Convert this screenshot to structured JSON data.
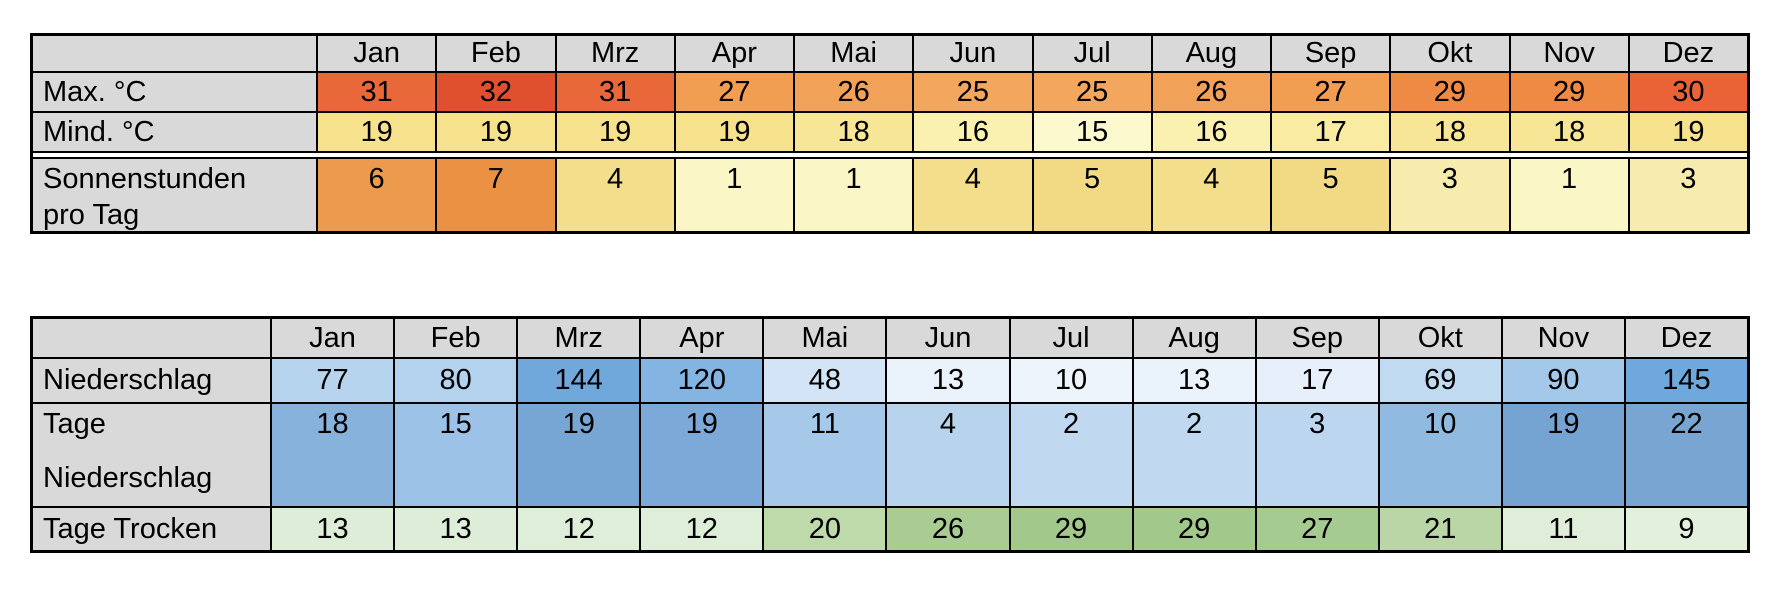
{
  "page": {
    "background": "#FFFFFF"
  },
  "palette": {
    "header_bg": "#D9D9D9",
    "label_bg": "#D9D9D9",
    "border": "#000000",
    "text": "#000000"
  },
  "months": [
    "Jan",
    "Feb",
    "Mrz",
    "Apr",
    "Mai",
    "Jun",
    "Jul",
    "Aug",
    "Sep",
    "Okt",
    "Nov",
    "Dez"
  ],
  "chart_data": [
    {
      "type": "table",
      "title": "",
      "categories": [
        "Jan",
        "Feb",
        "Mrz",
        "Apr",
        "Mai",
        "Jun",
        "Jul",
        "Aug",
        "Sep",
        "Okt",
        "Nov",
        "Dez"
      ],
      "series": [
        {
          "name": "Max. °C",
          "values": [
            31,
            32,
            31,
            27,
            26,
            25,
            25,
            26,
            27,
            29,
            29,
            30
          ]
        },
        {
          "name": "Mind. °C",
          "values": [
            19,
            19,
            19,
            19,
            18,
            16,
            15,
            16,
            17,
            18,
            18,
            19
          ]
        },
        {
          "name": "Sonnenstunden pro Tag",
          "values": [
            6,
            7,
            4,
            1,
            1,
            4,
            5,
            4,
            5,
            3,
            1,
            3
          ]
        }
      ]
    },
    {
      "type": "table",
      "title": "",
      "categories": [
        "Jan",
        "Feb",
        "Mrz",
        "Apr",
        "Mai",
        "Jun",
        "Jul",
        "Aug",
        "Sep",
        "Okt",
        "Nov",
        "Dez"
      ],
      "series": [
        {
          "name": "Niederschlag",
          "values": [
            77,
            80,
            144,
            120,
            48,
            13,
            10,
            13,
            17,
            69,
            90,
            145
          ]
        },
        {
          "name": "Tage Niederschlag",
          "values": [
            18,
            15,
            19,
            19,
            11,
            4,
            2,
            2,
            3,
            10,
            19,
            22
          ]
        },
        {
          "name": "Tage Trocken",
          "values": [
            13,
            13,
            12,
            12,
            20,
            26,
            29,
            29,
            27,
            21,
            11,
            9
          ]
        }
      ]
    }
  ],
  "tables": [
    {
      "id": "climate-table",
      "name": "temperature-sun-table",
      "chart": 0,
      "rows": [
        {
          "label_lines": [
            "Max. °C"
          ],
          "series": 0,
          "tall": false,
          "colors": [
            "#E8683A",
            "#E1502E",
            "#E8683A",
            "#F19D52",
            "#F2A158",
            "#F3A65E",
            "#F3A65E",
            "#F2A158",
            "#F19D52",
            "#EE8A43",
            "#EE8A43",
            "#EA6336"
          ]
        },
        {
          "label_lines": [
            "Mind. °C"
          ],
          "series": 1,
          "tall": false,
          "colors": [
            "#F6E18C",
            "#F6E18C",
            "#F6E18C",
            "#F6E18C",
            "#F7E695",
            "#FAF0B0",
            "#FDF9CF",
            "#FAF0B0",
            "#F9EBA2",
            "#F7E695",
            "#F7E695",
            "#F6E18C"
          ]
        },
        {
          "label_lines": [
            "Sonnenstunden",
            "pro Tag"
          ],
          "series": 2,
          "tall": true,
          "colors": [
            "#EC9A4B",
            "#EA9143",
            "#F2DE8B",
            "#FBF6C6",
            "#FBF6C6",
            "#F2DE8B",
            "#F1DA83",
            "#F2DE8B",
            "#F1DA83",
            "#F7ECAD",
            "#FBF6C6",
            "#F7ECAD"
          ]
        }
      ]
    },
    {
      "id": "rain-table",
      "name": "precipitation-table",
      "chart": 1,
      "rows": [
        {
          "label_lines": [
            "Niederschlag"
          ],
          "series": 0,
          "tall": false,
          "colors": [
            "#B7D4EF",
            "#B3D2EE",
            "#70A8DC",
            "#84B4E2",
            "#D2E4F6",
            "#EAF2FB",
            "#EDF4FC",
            "#EAF2FB",
            "#E7F0FA",
            "#BFDAF1",
            "#A4C8EA",
            "#6FA8DC"
          ]
        },
        {
          "label_lines": [
            "Tage",
            "Niederschlag"
          ],
          "series": 1,
          "tall": true,
          "colors": [
            "#86B2DC",
            "#9CC2E7",
            "#78A6D4",
            "#7CA9D7",
            "#A6C9EA",
            "#B8D4ED",
            "#C0D9F0",
            "#C0D9F0",
            "#BCD6EF",
            "#90BAE0",
            "#75A3D2",
            "#78A5D2"
          ]
        },
        {
          "label_lines": [
            "Tage Trocken"
          ],
          "series": 2,
          "tall": false,
          "colors": [
            "#DEEDD7",
            "#DEEDD7",
            "#DFEED8",
            "#DFEED8",
            "#BED9AA",
            "#A8CC92",
            "#A2C98B",
            "#A2C98B",
            "#A6CB90",
            "#BAD6A6",
            "#E0EED9",
            "#E3F0DC"
          ]
        }
      ]
    }
  ]
}
